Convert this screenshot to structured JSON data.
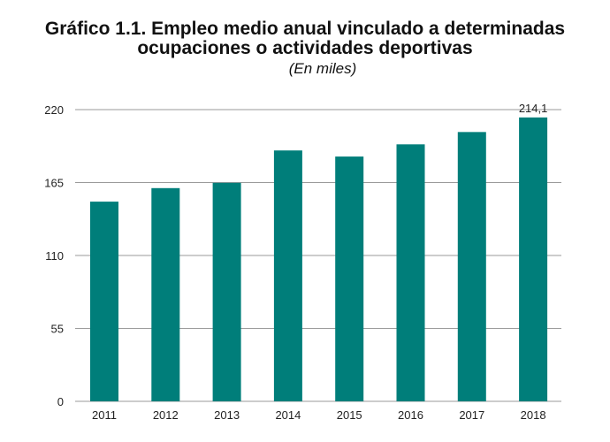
{
  "chart_data": {
    "type": "bar",
    "title": "Gráfico 1.1. Empleo medio anual vinculado a determinadas ocupaciones o actividades deportivas",
    "subtitle": "(En miles)",
    "categories": [
      "2011",
      "2012",
      "2013",
      "2014",
      "2015",
      "2016",
      "2017",
      "2018"
    ],
    "values": [
      150.6,
      160.8,
      164.8,
      189.2,
      184.6,
      193.8,
      203.1,
      214.1
    ],
    "data_labels": {
      "7": "214,1"
    },
    "yticks": [
      "0",
      "55",
      "110",
      "165",
      "220"
    ],
    "ylim": [
      0,
      220
    ],
    "grid": true,
    "bar_color": "#007E7A"
  }
}
